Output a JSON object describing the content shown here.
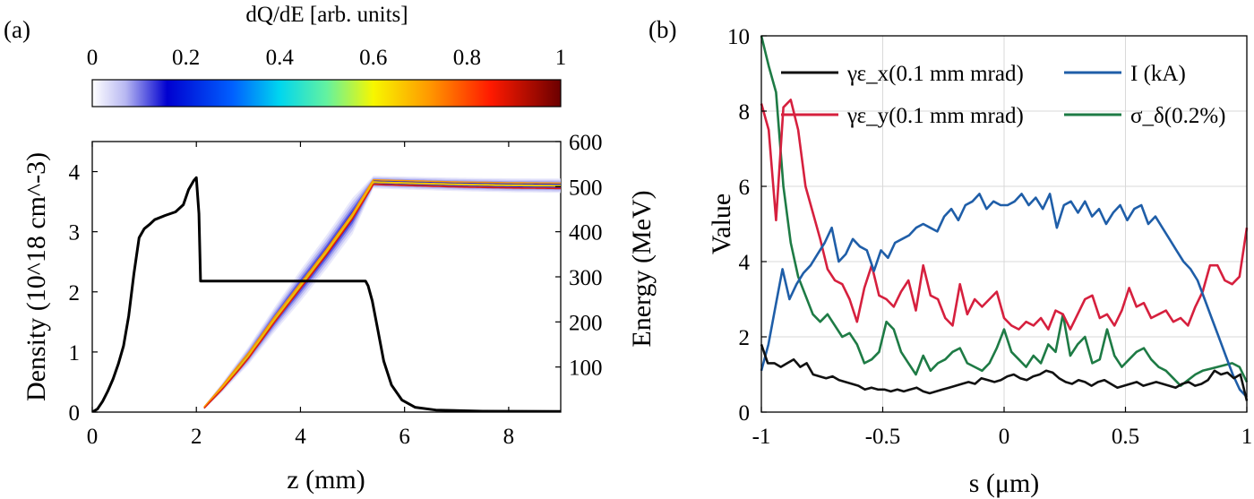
{
  "panel_a": {
    "label": "(a)",
    "colorbar": {
      "title": "dQ/dE [arb. units]",
      "ticks": [
        "0",
        "0.2",
        "0.4",
        "0.6",
        "0.8",
        "1"
      ],
      "range": [
        0,
        1
      ],
      "colormap": "white-blue-cyan-yellow-red-darkred"
    }
  },
  "panel_b": {
    "label": "(b)"
  },
  "chart_data": [
    {
      "type": "line",
      "xlabel": "z (mm)",
      "ylabel": "Density (10^18 cm^-3)",
      "ylabel_right": "Energy (MeV)",
      "xlim": [
        0,
        9
      ],
      "ylim": [
        0,
        4.5
      ],
      "ylim_right": [
        0,
        600
      ],
      "xticks": [
        "0",
        "2",
        "4",
        "6",
        "8"
      ],
      "yticks": [
        "0",
        "1",
        "2",
        "3",
        "4"
      ],
      "yticks_right": [
        "100",
        "200",
        "300",
        "400",
        "500",
        "600"
      ],
      "grid": false,
      "series": [
        {
          "name": "",
          "color": "#000000",
          "axis": "left",
          "points": [
            [
              0,
              0
            ],
            [
              0.1,
              0.05
            ],
            [
              0.2,
              0.18
            ],
            [
              0.3,
              0.35
            ],
            [
              0.4,
              0.55
            ],
            [
              0.5,
              0.8
            ],
            [
              0.6,
              1.1
            ],
            [
              0.7,
              1.6
            ],
            [
              0.8,
              2.3
            ],
            [
              0.9,
              2.9
            ],
            [
              1.0,
              3.05
            ],
            [
              1.1,
              3.12
            ],
            [
              1.2,
              3.2
            ],
            [
              1.4,
              3.27
            ],
            [
              1.6,
              3.33
            ],
            [
              1.75,
              3.45
            ],
            [
              1.85,
              3.7
            ],
            [
              1.95,
              3.85
            ],
            [
              2.0,
              3.9
            ],
            [
              2.05,
              3.3
            ],
            [
              2.08,
              2.18
            ],
            [
              2.5,
              2.18
            ],
            [
              3,
              2.18
            ],
            [
              4,
              2.18
            ],
            [
              5,
              2.18
            ],
            [
              5.25,
              2.18
            ],
            [
              5.3,
              2.1
            ],
            [
              5.38,
              1.85
            ],
            [
              5.48,
              1.4
            ],
            [
              5.6,
              0.85
            ],
            [
              5.75,
              0.45
            ],
            [
              5.95,
              0.2
            ],
            [
              6.2,
              0.08
            ],
            [
              6.6,
              0.035
            ],
            [
              7.5,
              0.015
            ],
            [
              9,
              0.01
            ]
          ]
        },
        {
          "name": "",
          "type": "energy-spectrum-band",
          "colormap": "dQ/dE",
          "axis": "right",
          "center": [
            [
              2.15,
              10
            ],
            [
              2.5,
              55
            ],
            [
              3,
              125
            ],
            [
              3.5,
              205
            ],
            [
              4,
              280
            ],
            [
              4.5,
              355
            ],
            [
              5,
              435
            ],
            [
              5.4,
              510
            ],
            [
              6,
              508
            ],
            [
              7,
              505
            ],
            [
              8,
              503
            ],
            [
              9,
              502
            ]
          ],
          "spread_MeV": [
            [
              2.15,
              4
            ],
            [
              3,
              20
            ],
            [
              4,
              35
            ],
            [
              5,
              40
            ],
            [
              5.4,
              14
            ],
            [
              9,
              16
            ]
          ]
        }
      ]
    },
    {
      "type": "line",
      "xlabel": "s (μm)",
      "ylabel": "Value",
      "xlim": [
        -1,
        1
      ],
      "ylim": [
        0,
        10
      ],
      "xticks": [
        "-1",
        "-0.5",
        "0",
        "0.5",
        "1"
      ],
      "yticks": [
        "0",
        "2",
        "4",
        "6",
        "8",
        "10"
      ],
      "grid": true,
      "legend_position": "top",
      "series": [
        {
          "name": "γε_x(0.1 mm mrad)",
          "color": "#111111",
          "y": [
            1.8,
            1.3,
            1.3,
            1.2,
            1.3,
            1.4,
            1.2,
            1.3,
            1.0,
            0.95,
            0.9,
            0.95,
            0.85,
            0.8,
            0.75,
            0.7,
            0.6,
            0.65,
            0.6,
            0.6,
            0.55,
            0.6,
            0.55,
            0.6,
            0.65,
            0.55,
            0.5,
            0.55,
            0.6,
            0.65,
            0.7,
            0.75,
            0.8,
            0.75,
            0.9,
            0.85,
            0.8,
            0.85,
            0.95,
            1.0,
            0.9,
            0.85,
            0.95,
            1.0,
            1.1,
            1.05,
            0.9,
            0.8,
            0.75,
            0.85,
            0.8,
            0.7,
            0.8,
            0.85,
            0.75,
            0.65,
            0.7,
            0.75,
            0.8,
            0.7,
            0.75,
            0.8,
            0.75,
            0.7,
            0.65,
            0.75,
            0.8,
            0.7,
            0.75,
            0.85,
            1.1,
            1.0,
            1.05,
            0.9,
            1.0,
            0.3
          ]
        },
        {
          "name": "I (kA)",
          "color": "#1f5ea8",
          "y": [
            1.1,
            1.8,
            2.8,
            3.8,
            3.0,
            3.4,
            3.7,
            3.9,
            4.2,
            4.5,
            4.9,
            4.0,
            4.2,
            4.6,
            4.4,
            4.3,
            3.75,
            4.3,
            4.1,
            4.5,
            4.6,
            4.7,
            4.9,
            5.0,
            4.9,
            4.8,
            5.2,
            5.4,
            5.1,
            5.5,
            5.6,
            5.8,
            5.4,
            5.6,
            5.5,
            5.5,
            5.6,
            5.8,
            5.5,
            5.7,
            5.4,
            5.8,
            4.9,
            5.5,
            5.6,
            5.3,
            5.6,
            5.2,
            5.4,
            5.0,
            5.3,
            5.5,
            5.1,
            5.4,
            5.5,
            5.0,
            5.2,
            4.9,
            4.6,
            4.3,
            4.0,
            3.8,
            3.5,
            3.0,
            2.5,
            2.0,
            1.5,
            1.0,
            0.6,
            0.4
          ]
        },
        {
          "name": "γε_y(0.1 mm mrad)",
          "color": "#d6203e",
          "y": [
            8.2,
            7.5,
            5.1,
            8.1,
            8.3,
            7.5,
            6.0,
            5.3,
            4.6,
            3.8,
            3.5,
            3.4,
            3.0,
            2.4,
            3.3,
            3.9,
            3.1,
            3.0,
            2.8,
            3.2,
            3.5,
            2.7,
            3.9,
            3.1,
            3.0,
            2.5,
            2.3,
            3.4,
            2.6,
            3.0,
            2.8,
            3.0,
            3.2,
            2.5,
            2.3,
            2.2,
            2.4,
            2.3,
            2.5,
            2.2,
            2.7,
            2.6,
            2.2,
            2.6,
            3.0,
            3.1,
            2.5,
            2.6,
            2.3,
            2.7,
            3.3,
            2.8,
            2.9,
            2.5,
            2.6,
            2.7,
            2.4,
            2.5,
            2.3,
            2.8,
            3.2,
            3.9,
            3.9,
            3.5,
            3.4,
            3.6,
            4.9
          ]
        },
        {
          "name": "σ_δ(0.2%)",
          "color": "#1e7b45",
          "y": [
            10.0,
            9.2,
            8.5,
            6.0,
            4.5,
            3.6,
            3.1,
            2.6,
            2.4,
            2.6,
            2.3,
            2.0,
            2.1,
            1.8,
            1.3,
            1.4,
            1.6,
            2.4,
            2.2,
            1.6,
            1.3,
            1.0,
            1.5,
            1.1,
            1.3,
            1.4,
            1.6,
            1.7,
            1.3,
            1.2,
            1.1,
            1.3,
            1.7,
            2.2,
            1.6,
            1.4,
            1.2,
            1.5,
            1.3,
            1.8,
            1.6,
            2.6,
            1.5,
            1.8,
            2.0,
            1.3,
            1.4,
            2.2,
            1.5,
            1.2,
            1.4,
            1.6,
            1.7,
            1.4,
            1.2,
            1.1,
            0.9,
            0.7,
            0.85,
            1.0,
            1.1,
            1.15,
            1.2,
            1.25,
            1.3,
            1.2,
            0.8
          ]
        }
      ]
    }
  ]
}
